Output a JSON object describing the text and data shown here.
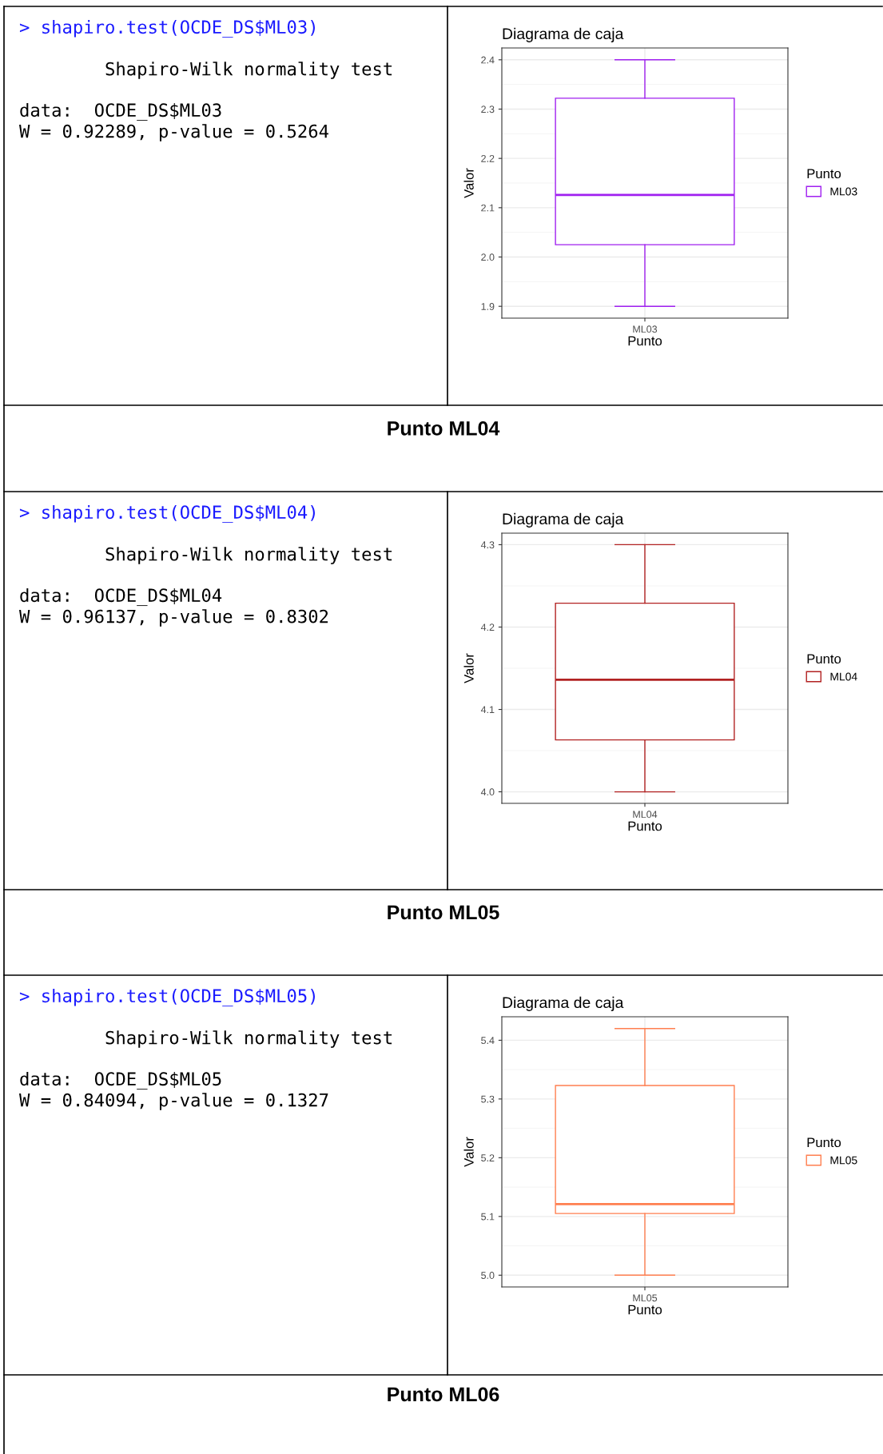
{
  "chart_data": [
    {
      "type": "other",
      "annotations": [
        "> shapiro.test(OCDE_DS$ML03)",
        "        Shapiro-Wilk normality test",
        "data:  OCDE_DS$ML03",
        "W = 0.92289, p-value = 0.5264"
      ],
      "colors": [
        "#1a1aff",
        "#000000",
        "#000000",
        "#000000"
      ]
    },
    {
      "type": "box",
      "title": "Diagrama de caja",
      "xlabel": "Punto",
      "ylabel": "Valor",
      "legend_title": "Punto",
      "categories": [
        "ML03"
      ],
      "series": [
        {
          "name": "ML03",
          "color": "#a020f0",
          "boxes": [
            {
              "low": 1.9,
              "q1": 2.025,
              "median": 2.126,
              "q3": 2.322,
              "high": 2.4
            }
          ]
        }
      ],
      "ylim": [
        1.876,
        2.424
      ],
      "yticks": [
        1.9,
        {
          "value": 2,
          "label": "2.0"
        },
        2.1,
        2.2,
        2.3,
        2.4
      ],
      "grid": true,
      "legend": "right"
    },
    {
      "type": "other",
      "title": "Punto ML04"
    },
    {
      "type": "other",
      "annotations": [
        "> shapiro.test(OCDE_DS$ML04)",
        "        Shapiro-Wilk normality test",
        "data:  OCDE_DS$ML04",
        "W = 0.96137, p-value = 0.8302"
      ],
      "colors": [
        "#1a1aff",
        "#000000",
        "#000000",
        "#000000"
      ]
    },
    {
      "type": "box",
      "title": "Diagrama de caja",
      "xlabel": "Punto",
      "ylabel": "Valor",
      "legend_title": "Punto",
      "categories": [
        "ML04"
      ],
      "series": [
        {
          "name": "ML04",
          "color": "#b22222",
          "boxes": [
            {
              "low": 4.0,
              "q1": 4.063,
              "median": 4.136,
              "q3": 4.229,
              "high": 4.3
            }
          ]
        }
      ],
      "ylim": [
        3.986,
        4.314
      ],
      "yticks": [
        {
          "value": 4,
          "label": "4.0"
        },
        4.1,
        4.2,
        4.3
      ],
      "grid": true,
      "legend": "right"
    },
    {
      "type": "other",
      "title": "Punto ML05"
    },
    {
      "type": "other",
      "annotations": [
        "> shapiro.test(OCDE_DS$ML05)",
        "        Shapiro-Wilk normality test",
        "data:  OCDE_DS$ML05",
        "W = 0.84094, p-value = 0.1327"
      ],
      "colors": [
        "#1a1aff",
        "#000000",
        "#000000",
        "#000000"
      ]
    },
    {
      "type": "box",
      "title": "Diagrama de caja",
      "xlabel": "Punto",
      "ylabel": "Valor",
      "legend_title": "Punto",
      "categories": [
        "ML05"
      ],
      "series": [
        {
          "name": "ML05",
          "color": "#ff7f50",
          "boxes": [
            {
              "low": 5.0,
              "q1": 5.105,
              "median": 5.121,
              "q3": 5.323,
              "high": 5.42
            }
          ]
        }
      ],
      "ylim": [
        4.98,
        5.44
      ],
      "yticks": [
        {
          "value": 5,
          "label": "5.0"
        },
        5.1,
        5.2,
        5.3,
        5.4
      ],
      "grid": true,
      "legend": "right"
    },
    {
      "type": "other",
      "title": "Punto ML06"
    }
  ]
}
